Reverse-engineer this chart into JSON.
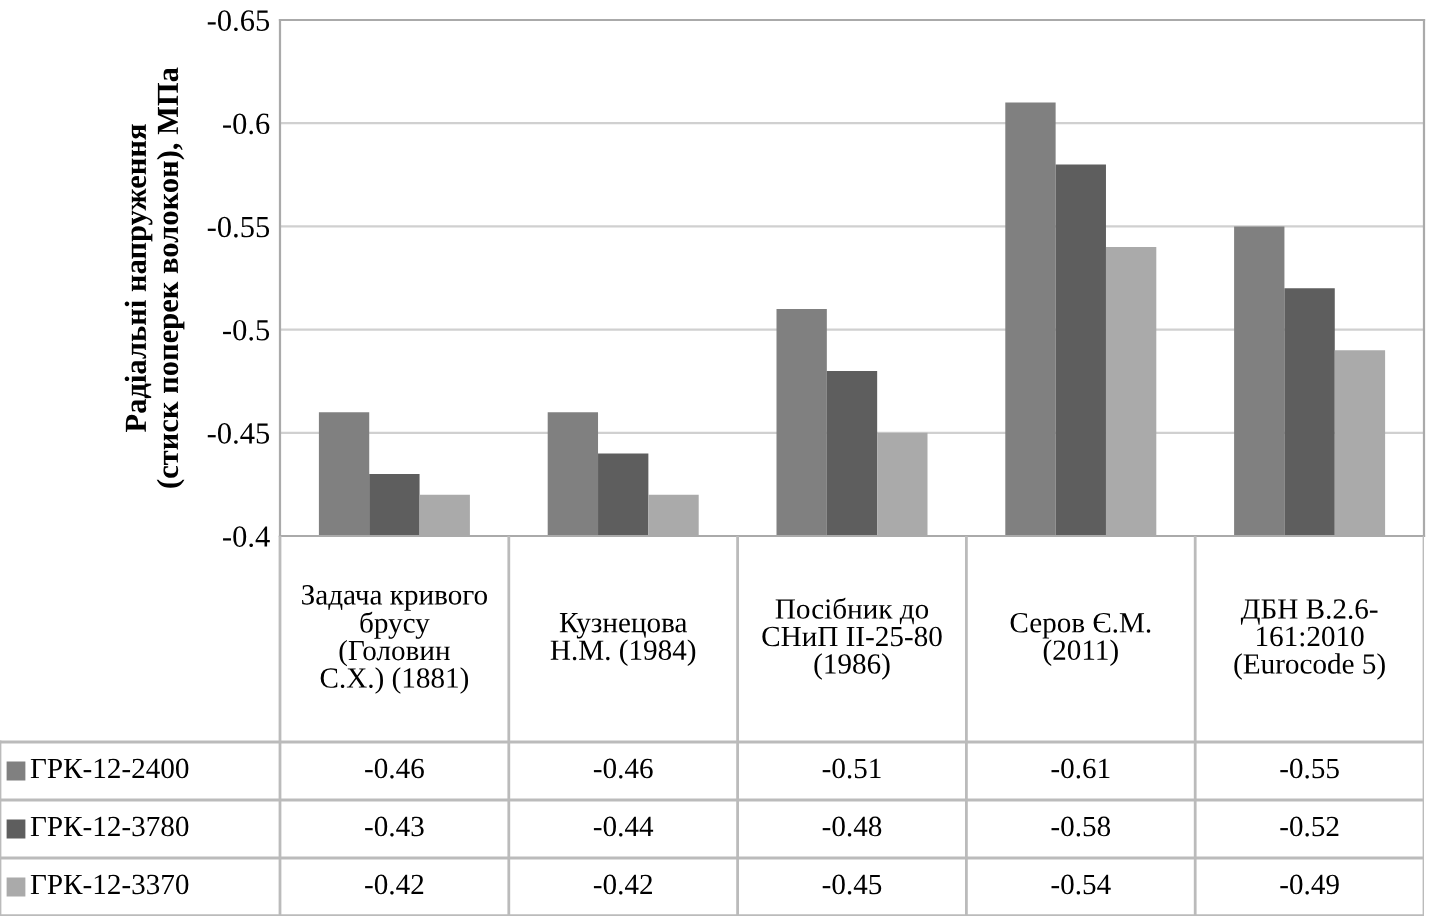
{
  "chart_data": {
    "type": "bar",
    "ylabel": "Радіальні напруження\n(стиск поперек волокон), МПа",
    "categories": [
      "Задача кривого\nбрусу\n(Головин\nС.Х.) (1881)",
      "Кузнецова\nН.М. (1984)",
      "Посібник до\nСНиП II-25-80\n(1986)",
      "Серов Є.М.\n(2011)",
      "ДБН В.2.6-\n161:2010\n(Eurocode 5)"
    ],
    "series": [
      {
        "name": "ГРК-12-2400",
        "color": "#808080",
        "values": [
          -0.46,
          -0.46,
          -0.51,
          -0.61,
          -0.55
        ]
      },
      {
        "name": "ГРК-12-3780",
        "color": "#5e5e5e",
        "values": [
          -0.43,
          -0.44,
          -0.48,
          -0.58,
          -0.52
        ]
      },
      {
        "name": "ГРК-12-3370",
        "color": "#aaaaaa",
        "values": [
          -0.42,
          -0.42,
          -0.45,
          -0.54,
          -0.49
        ]
      }
    ],
    "ylim": [
      -0.4,
      -0.65
    ],
    "yticks": [
      -0.4,
      -0.45,
      -0.5,
      -0.55,
      -0.6,
      -0.65
    ],
    "grid": "y",
    "legend": "bottom",
    "data_labels": true
  }
}
